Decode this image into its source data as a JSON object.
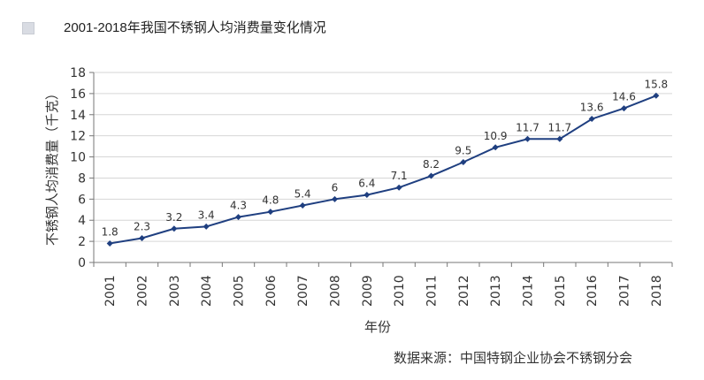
{
  "chart_data": {
    "type": "line",
    "title": "2001-2018年我国不锈钢人均消费量变化情况",
    "xlabel": "年份",
    "ylabel": "不锈钢人均消费量（千克）",
    "ylim": [
      0,
      18
    ],
    "yticks": [
      0,
      2,
      4,
      6,
      8,
      10,
      12,
      14,
      16,
      18
    ],
    "categories": [
      "2001",
      "2002",
      "2003",
      "2004",
      "2005",
      "2006",
      "2007",
      "2008",
      "2009",
      "2010",
      "2011",
      "2012",
      "2013",
      "2014",
      "2015",
      "2016",
      "2017",
      "2018"
    ],
    "values": [
      1.8,
      2.3,
      3.2,
      3.4,
      4.3,
      4.8,
      5.4,
      6,
      6.4,
      7.1,
      8.2,
      9.5,
      10.9,
      11.7,
      11.7,
      13.6,
      14.6,
      15.8
    ],
    "data_labels": [
      "1.8",
      "2.3",
      "3.2",
      "3.4",
      "4.3",
      "4.8",
      "5.4",
      "6",
      "6.4",
      "7.1",
      "8.2",
      "9.5",
      "10.9",
      "11.7",
      "11.7",
      "13.6",
      "14.6",
      "15.8"
    ],
    "line_color": "#1f3f80",
    "grid": true
  },
  "source": "数据来源：中国特钢企业协会不锈钢分会"
}
